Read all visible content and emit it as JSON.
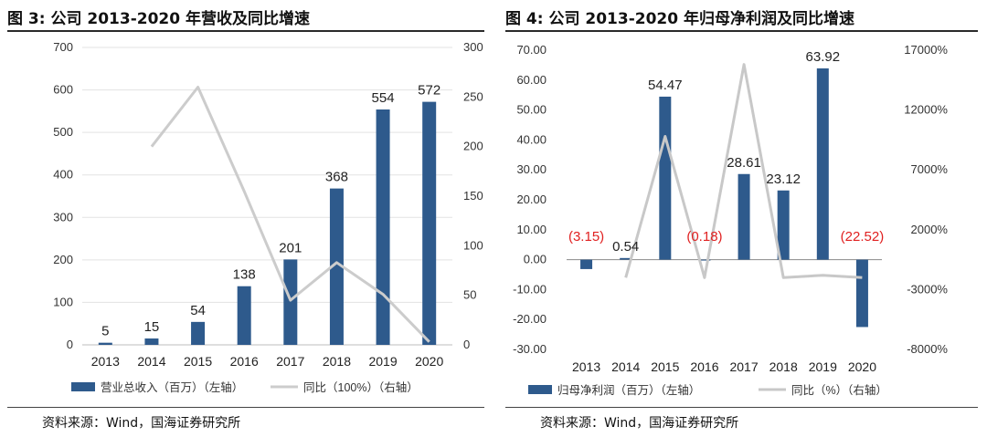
{
  "left": {
    "title": "图 3:  公司 2013-2020 年营收及同比增速",
    "source": "资料来源：Wind，国海证券研究所",
    "chart_data": {
      "type": "bar",
      "categories": [
        "2013",
        "2014",
        "2015",
        "2016",
        "2017",
        "2018",
        "2019",
        "2020"
      ],
      "series": [
        {
          "name": "营业总收入（百万）（左轴）",
          "type": "bar",
          "axis": "left",
          "values": [
            5,
            15,
            54,
            138,
            201,
            368,
            554,
            572
          ],
          "color": "#2e5a8c"
        },
        {
          "name": "同比（100%）（右轴）",
          "type": "line",
          "axis": "right",
          "values": [
            null,
            200,
            260,
            155,
            45,
            83,
            51,
            3
          ],
          "color": "#cccccc"
        }
      ],
      "data_labels": [
        "5",
        "15",
        "54",
        "138",
        "201",
        "368",
        "554",
        "572"
      ],
      "left_axis": {
        "min": 0,
        "max": 700,
        "ticks": [
          "0",
          "100",
          "200",
          "300",
          "400",
          "500",
          "600",
          "700"
        ]
      },
      "right_axis": {
        "min": 0,
        "max": 300,
        "ticks": [
          "0",
          "50",
          "100",
          "150",
          "200",
          "250",
          "300"
        ]
      },
      "grid": true,
      "legend_position": "bottom"
    }
  },
  "right": {
    "title": "图 4:  公司 2013-2020 年归母净利润及同比增速",
    "source": "资料来源：Wind，国海证券研究所",
    "chart_data": {
      "type": "bar",
      "categories": [
        "2013",
        "2014",
        "2015",
        "2016",
        "2017",
        "2018",
        "2019",
        "2020"
      ],
      "series": [
        {
          "name": "归母净利润（百万）（左轴）",
          "type": "bar",
          "axis": "left",
          "values": [
            -3.15,
            0.54,
            54.47,
            -0.18,
            28.61,
            23.12,
            63.92,
            -22.52
          ],
          "color": "#2e5a8c"
        },
        {
          "name": "同比（%）（右轴）",
          "type": "line",
          "axis": "right",
          "values": [
            null,
            -2000,
            9800,
            -2000,
            15800,
            -2000,
            -1800,
            -2000
          ],
          "color": "#c8c8c8"
        }
      ],
      "data_labels": [
        "(3.15)",
        "0.54",
        "54.47",
        "(0.18)",
        "28.61",
        "23.12",
        "63.92",
        "(22.52)"
      ],
      "negative_label_color": "#e02020",
      "left_axis": {
        "min": -30,
        "max": 70,
        "ticks": [
          "-30.00",
          "-20.00",
          "-10.00",
          "0.00",
          "10.00",
          "20.00",
          "30.00",
          "40.00",
          "50.00",
          "60.00",
          "70.00"
        ]
      },
      "right_axis": {
        "min": -8000,
        "max": 17000,
        "ticks": [
          "-8000%",
          "-3000%",
          "2000%",
          "7000%",
          "12000%",
          "17000%"
        ]
      },
      "grid": false,
      "legend_position": "bottom"
    }
  }
}
